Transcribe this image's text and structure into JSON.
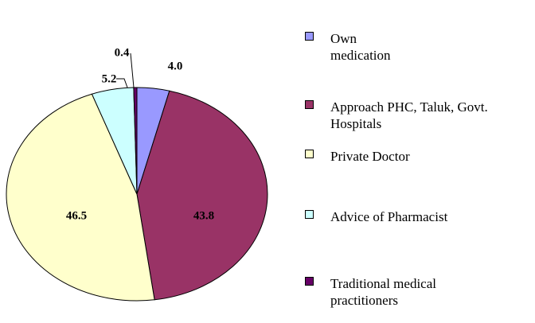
{
  "chart_data": {
    "type": "pie",
    "categories": [
      "Own medication",
      "Approach PHC, Taluk, Govt. Hospitals",
      "Private Doctor",
      "Advice of Pharmacist",
      "Traditional medical practitioners"
    ],
    "values": [
      4.0,
      43.8,
      46.5,
      5.2,
      0.4
    ],
    "value_labels": [
      "4.0",
      "43.8",
      "46.5",
      "5.2",
      "0.4"
    ],
    "colors": [
      "#9999ff",
      "#993366",
      "#ffffcc",
      "#ccffff",
      "#660066"
    ],
    "legend": "right"
  }
}
